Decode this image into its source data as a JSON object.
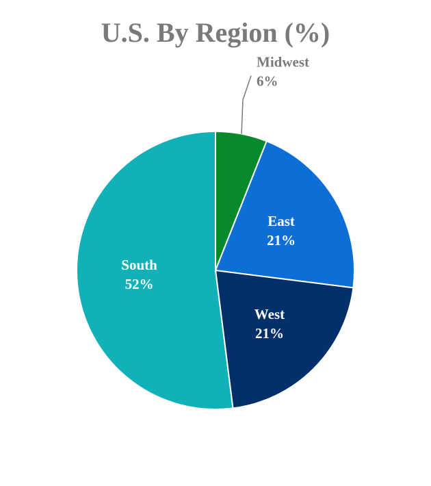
{
  "chart_data": {
    "type": "pie",
    "title": "U.S. By Region (%)",
    "start_angle_deg": 0,
    "direction": "clockwise",
    "slices": [
      {
        "label": "Midwest",
        "value": 6,
        "display": "6%",
        "color": "#078b2a",
        "label_color": "#7a7a7a",
        "label_position": "outside"
      },
      {
        "label": "East",
        "value": 21,
        "display": "21%",
        "color": "#0d6fd6",
        "label_color": "#ffffff",
        "label_position": "inside"
      },
      {
        "label": "West",
        "value": 21,
        "display": "21%",
        "color": "#03306b",
        "label_color": "#ffffff",
        "label_position": "inside"
      },
      {
        "label": "South",
        "value": 52,
        "display": "52%",
        "color": "#10b2b8",
        "label_color": "#ffffff",
        "label_position": "inside"
      }
    ],
    "legend": "none"
  }
}
